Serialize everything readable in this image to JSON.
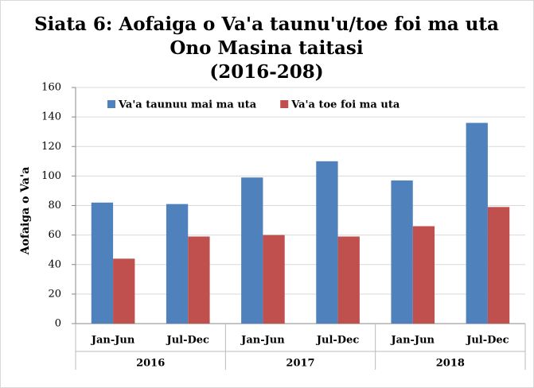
{
  "chart_data": {
    "type": "bar",
    "title": [
      "Siata 6: Aofaiga o Va'a taunu'u/toe foi ma uta",
      "Ono Masina taitasi",
      "(2016-208)"
    ],
    "y_label": "Aofaiga o Va'a",
    "categories": [
      "Jan-Jun",
      "Jul-Dec",
      "Jan-Jun",
      "Jul-Dec",
      "Jan-Jun",
      "Jul-Dec"
    ],
    "groups": [
      "2016",
      "2017",
      "2018"
    ],
    "series": [
      {
        "name": "Va'a taunuu mai ma uta",
        "color": "#4f81bd",
        "values": [
          82,
          81,
          99,
          110,
          97,
          136
        ]
      },
      {
        "name": "Va'a toe foi ma uta",
        "color": "#c0504d",
        "values": [
          44,
          59,
          60,
          59,
          66,
          79
        ]
      }
    ],
    "ylim": [
      0,
      160
    ],
    "yticks": [
      0,
      20,
      40,
      60,
      80,
      100,
      120,
      140,
      160
    ],
    "grid": true,
    "legend": "top"
  }
}
